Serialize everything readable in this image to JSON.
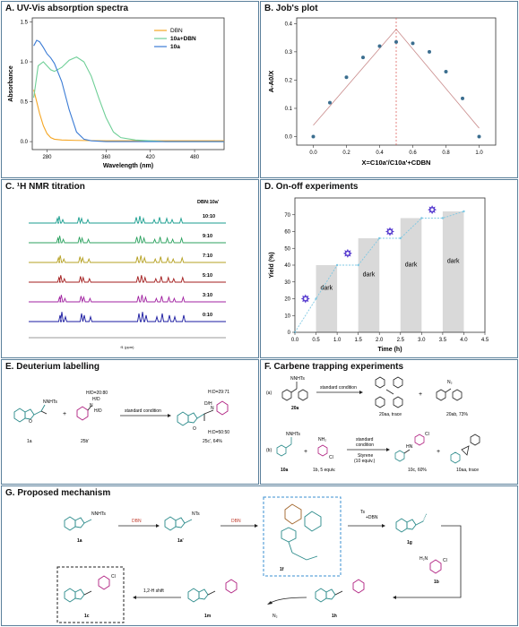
{
  "panels": {
    "A": {
      "title": "A. UV-Vis absorption spectra"
    },
    "B": {
      "title": "B. Job's plot"
    },
    "C": {
      "title": "C. ¹H NMR titration"
    },
    "D": {
      "title": "D. On-off experiments"
    },
    "E": {
      "title": "E. Deuterium labelling"
    },
    "F": {
      "title": "F. Carbene trapping experiments"
    },
    "G": {
      "title": "G. Proposed mechanism"
    }
  },
  "chart_data": [
    {
      "panel": "A",
      "type": "line",
      "xlabel": "Wavelength (nm)",
      "ylabel": "Absorbance",
      "xlim": [
        260,
        520
      ],
      "ylim": [
        -0.1,
        1.55
      ],
      "xticks": [
        "280",
        "360",
        "420",
        "480"
      ],
      "yticks": [
        "0.0",
        "0.5",
        "1.0",
        "1.5"
      ],
      "legend": "top-right",
      "series": [
        {
          "name": "DBN",
          "color": "#f5a623",
          "x": [
            262,
            266,
            270,
            275,
            280,
            285,
            290,
            300,
            320,
            360,
            400,
            440,
            480,
            520
          ],
          "y": [
            0.65,
            0.5,
            0.35,
            0.2,
            0.1,
            0.05,
            0.03,
            0.02,
            0.015,
            0.01,
            0.01,
            0.01,
            0.01,
            0.01
          ]
        },
        {
          "name": "10a+DBN",
          "color": "#6fcf97",
          "x": [
            262,
            268,
            275,
            280,
            285,
            290,
            300,
            310,
            320,
            330,
            340,
            350,
            360,
            370,
            380,
            400,
            420,
            440,
            480,
            520
          ],
          "y": [
            0.55,
            0.95,
            1.0,
            0.95,
            0.9,
            0.88,
            0.93,
            1.02,
            1.06,
            1.0,
            0.82,
            0.55,
            0.3,
            0.12,
            0.05,
            0.02,
            0.01,
            0.0,
            0.0,
            0.0
          ]
        },
        {
          "name": "10a",
          "color": "#3a7bd5",
          "x": [
            262,
            266,
            270,
            275,
            280,
            285,
            290,
            300,
            310,
            320,
            330,
            340,
            360,
            400,
            440,
            480,
            520
          ],
          "y": [
            1.2,
            1.27,
            1.25,
            1.18,
            1.1,
            1.05,
            0.98,
            0.75,
            0.4,
            0.12,
            0.03,
            0.01,
            0.0,
            0.0,
            0.0,
            0.0,
            0.0
          ]
        }
      ]
    },
    {
      "panel": "B",
      "type": "scatter",
      "xlabel": "X=C10a'/C10a'+CDBN",
      "ylabel": "A-A0/X",
      "xlim": [
        -0.1,
        1.1
      ],
      "ylim": [
        -0.03,
        0.42
      ],
      "xticks": [
        "0.0",
        "0.2",
        "0.4",
        "0.6",
        "0.8",
        "1.0"
      ],
      "yticks": [
        "0.0",
        "0.1",
        "0.2",
        "0.3",
        "0.4"
      ],
      "x": [
        0.0,
        0.1,
        0.2,
        0.3,
        0.4,
        0.5,
        0.6,
        0.7,
        0.8,
        0.9,
        1.0
      ],
      "y": [
        0.0,
        0.12,
        0.21,
        0.28,
        0.32,
        0.335,
        0.33,
        0.3,
        0.23,
        0.135,
        0.0
      ],
      "fit_lines": [
        [
          [
            0.0,
            0.04
          ],
          [
            0.5,
            0.38
          ]
        ],
        [
          [
            0.5,
            0.38
          ],
          [
            1.0,
            0.03
          ]
        ]
      ],
      "peak_x": 0.5,
      "color": "#3b6e8f"
    },
    {
      "panel": "C",
      "type": "line",
      "legend_title": "DBN:10a'",
      "series": [
        {
          "name": "10:10",
          "color": "#1a9e8f"
        },
        {
          "name": "9:10",
          "color": "#2ca25f"
        },
        {
          "name": "7:10",
          "color": "#b5a020"
        },
        {
          "name": "5:10",
          "color": "#a31d1d"
        },
        {
          "name": "3:10",
          "color": "#a020a0"
        },
        {
          "name": "0:10",
          "color": "#1a1aa0"
        }
      ],
      "xlabel": "f1 (ppm)"
    },
    {
      "panel": "D",
      "type": "scatter",
      "xlabel": "Time (h)",
      "ylabel": "Yield (%)",
      "xlim": [
        0,
        4.5
      ],
      "ylim": [
        0,
        80
      ],
      "xticks": [
        "0.0",
        "0.5",
        "1.0",
        "1.5",
        "2.0",
        "2.5",
        "3.0",
        "3.5",
        "4.0",
        "4.5"
      ],
      "yticks": [
        "0",
        "10",
        "20",
        "30",
        "40",
        "50",
        "60",
        "70"
      ],
      "x": [
        0,
        0.5,
        1.0,
        1.5,
        2.0,
        2.5,
        3.0,
        3.5,
        4.0
      ],
      "y": [
        0,
        20,
        40,
        40,
        56,
        56,
        68,
        68,
        72
      ],
      "dark_label": "dark",
      "dark_regions": [
        [
          0.5,
          1.0,
          40
        ],
        [
          1.5,
          2.0,
          56
        ],
        [
          2.5,
          3.0,
          68
        ],
        [
          3.5,
          4.0,
          72
        ]
      ],
      "light_marks": [
        [
          0.25,
          20
        ],
        [
          1.25,
          47
        ],
        [
          2.25,
          60
        ],
        [
          3.25,
          73
        ]
      ],
      "color": "#7ec8e3"
    }
  ],
  "E": {
    "cond_hd": "H/D=20:80",
    "arrow": "standard condition",
    "ratio1": "H:D=29:71",
    "ratio2": "H:D=50:50",
    "sub1": "1a",
    "sub2": "25b'",
    "prod": "25c', 64%",
    "nnhts": "NNHTs",
    "hd": "H/D",
    "dh": "D/H",
    "plus": "+"
  },
  "F": {
    "a": "(a)",
    "b": "(b)",
    "cond_a": "standard condition",
    "s20a": "20a",
    "p20aa": "20aa, trace",
    "p20ab": "20ab, 73%",
    "n2": "N₂",
    "nnhts": "NNHTs",
    "nh2": "NH₂",
    "cl": "Cl",
    "s10a": "10a",
    "s1b": "1b, 5 equiv.",
    "cond_b1": "standard",
    "cond_b2": "condition",
    "styrene": "Styrene",
    "equiv": "(10 equiv.)",
    "p10c": "10c, 60%",
    "p10aa": "10aa, trace",
    "plus": "+",
    "hn": "HN"
  },
  "G": {
    "s1a": "1a",
    "s1a2": "1a'",
    "dbn1": "DBN",
    "dbn2": "DBN",
    "s1f": "1f",
    "ts": "Ts",
    "dbn3": "+DBN",
    "s1g": "1g",
    "s1b": "1b",
    "s1h": "1h",
    "n2": "N₂",
    "s1m": "1m",
    "shift": "1,2-H shift",
    "s1c": "1c",
    "nnhts": "NNHTs",
    "nts": "NTs",
    "h2n": "H₂N",
    "cl": "Cl"
  }
}
